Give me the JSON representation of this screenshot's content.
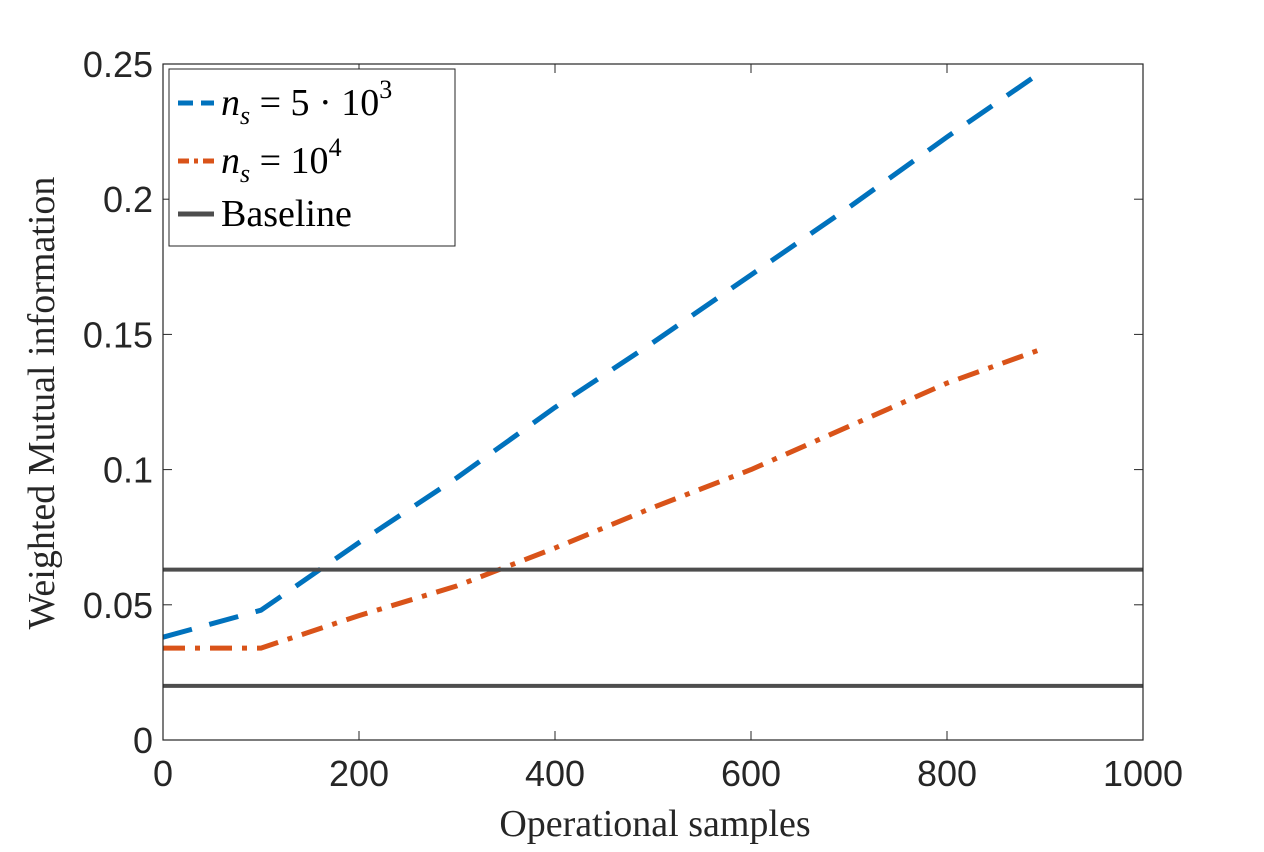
{
  "chart_data": {
    "type": "line",
    "xlabel": "Operational samples",
    "ylabel": "Weighted Mutual information",
    "xlim": [
      0,
      1000
    ],
    "ylim": [
      0,
      0.25
    ],
    "xticks": [
      0,
      200,
      400,
      600,
      800,
      1000
    ],
    "xtick_labels": [
      "0",
      "200",
      "400",
      "600",
      "800",
      "1000"
    ],
    "yticks": [
      0,
      0.05,
      0.1,
      0.15,
      0.2,
      0.25
    ],
    "ytick_labels": [
      "0",
      "0.05",
      "0.1",
      "0.15",
      "0.2",
      "0.25"
    ],
    "grid": false,
    "legend_position": "top-left",
    "series": [
      {
        "name": "n_s = 5 · 10^3",
        "color": "#0072BD",
        "style": "dashed",
        "x": [
          0,
          100,
          200,
          300,
          400,
          500,
          600,
          700,
          800,
          900
        ],
        "y": [
          0.038,
          0.048,
          0.073,
          0.097,
          0.123,
          0.147,
          0.172,
          0.197,
          0.223,
          0.248
        ]
      },
      {
        "name": "n_s = 10^4",
        "color": "#D95319",
        "style": "dashdot",
        "x": [
          0,
          100,
          200,
          300,
          400,
          500,
          600,
          700,
          800,
          900
        ],
        "y": [
          0.034,
          0.034,
          0.046,
          0.057,
          0.071,
          0.086,
          0.1,
          0.116,
          0.132,
          0.145
        ]
      },
      {
        "name": "Baseline",
        "color": "#4D4D4D",
        "style": "solid",
        "x": [
          0,
          1000
        ],
        "y": [
          0.063,
          0.063
        ]
      },
      {
        "name": "Baseline",
        "color": "#4D4D4D",
        "style": "solid",
        "x": [
          0,
          1000
        ],
        "y": [
          0.02,
          0.02
        ],
        "show_in_legend": false
      }
    ],
    "legend": [
      {
        "var": "n",
        "sub": "s",
        "rel": "= 5 · 10",
        "sup": "3"
      },
      {
        "var": "n",
        "sub": "s",
        "rel": "= 10",
        "sup": "4"
      },
      {
        "label": "Baseline"
      }
    ]
  }
}
